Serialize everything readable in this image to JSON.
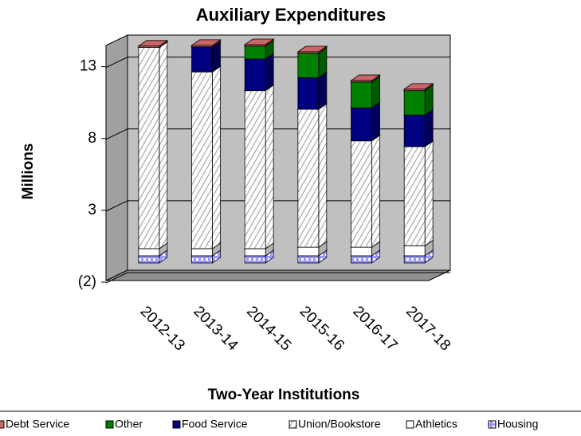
{
  "chart_data": {
    "type": "bar3d_stacked",
    "title": "Auxiliary Expenditures",
    "y_label": "Millions",
    "x_label": "Two-Year Institutions",
    "categories": [
      "2012-13",
      "2013-14",
      "2014-15",
      "2015-16",
      "2016-17",
      "2017-18"
    ],
    "series": [
      {
        "name": "Debt Service",
        "color": "#cc6666",
        "values": [
          0.1,
          0.1,
          0.1,
          0.1,
          0.1,
          0.1
        ]
      },
      {
        "name": "Other",
        "color": "#008000",
        "values": [
          0,
          0,
          0.9,
          1.7,
          1.8,
          1.7
        ]
      },
      {
        "name": "Food Service",
        "color": "#000080",
        "values": [
          0,
          1.75,
          2.2,
          2.2,
          2.3,
          2.2
        ]
      },
      {
        "name": "Union/Bookstore",
        "color": "#ffffff",
        "pattern": "hatch",
        "values": [
          14.0,
          12.3,
          11.0,
          9.6,
          7.4,
          6.9
        ]
      },
      {
        "name": "Athletics",
        "color": "#ffffff",
        "values": [
          0.5,
          0.5,
          0.5,
          0.6,
          0.6,
          0.7
        ]
      },
      {
        "name": "Housing",
        "color": "#9999ff",
        "pattern": "checker",
        "values": [
          0.5,
          0.5,
          0.5,
          0.5,
          0.5,
          0.5
        ]
      }
    ],
    "ylim": [
      -2,
      15.2
    ],
    "yticks": [
      {
        "value": -2,
        "label": "(2)"
      },
      3,
      8,
      13
    ],
    "grid": true,
    "legend": "bottom"
  }
}
